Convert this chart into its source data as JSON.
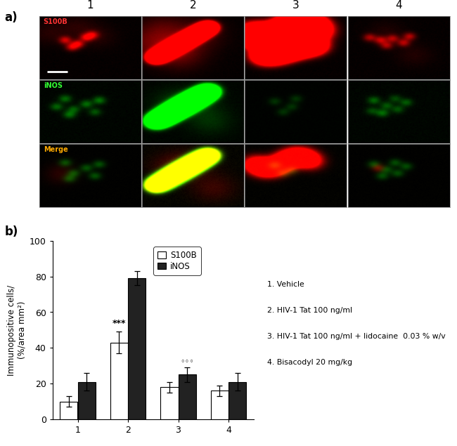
{
  "panel_a_label": "a)",
  "panel_b_label": "b)",
  "col_labels": [
    "1",
    "2",
    "3",
    "4"
  ],
  "row_labels": [
    "S100B",
    "iNOS",
    "Merge"
  ],
  "row_label_colors": [
    "#ff3333",
    "#33ff33",
    "#ffaa00"
  ],
  "s100b_values": [
    10,
    43,
    18,
    16
  ],
  "s100b_errors": [
    3,
    6,
    3,
    3
  ],
  "inos_values": [
    21,
    79,
    25,
    21
  ],
  "inos_errors": [
    5,
    4,
    4,
    5
  ],
  "s100b_color": "#ffffff",
  "inos_color": "#222222",
  "bar_edge_color": "#000000",
  "ylabel": "Immunopositive cells/\n(%/area mm²)",
  "ylim": [
    0,
    100
  ],
  "yticks": [
    0,
    20,
    40,
    60,
    80,
    100
  ],
  "xtick_labels": [
    "1",
    "2",
    "3",
    "4"
  ],
  "legend_s100b": "S100B",
  "legend_inos": "iNOS",
  "significance_label_2": "***",
  "significance_label_3": "◦◦◦",
  "legend_items": [
    "1. Vehicle",
    "2. HIV-1 Tat 100 ng/ml",
    "3. HIV-1 Tat 100 ng/ml + lidocaine  0.03 % w/v",
    "4. Bisacodyl 20 mg/kg"
  ],
  "bar_width": 0.35,
  "group_positions": [
    1,
    2,
    3,
    4
  ]
}
